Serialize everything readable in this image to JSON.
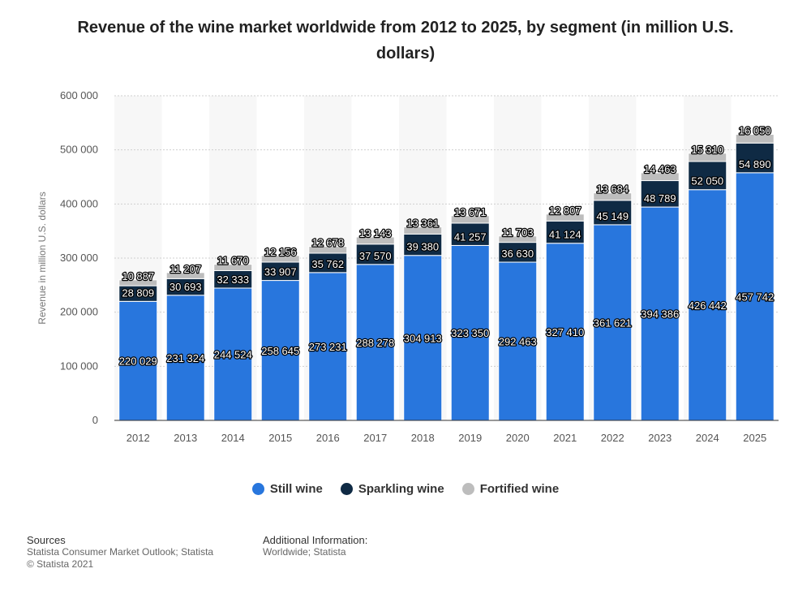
{
  "chart_data": {
    "type": "bar",
    "stacked": true,
    "title": "Revenue of the wine market worldwide from 2012 to 2025, by segment (in million U.S. dollars)",
    "xlabel": "",
    "ylabel": "Revenue in million U.S. dollars",
    "ylim": [
      0,
      600000
    ],
    "yticks": [
      0,
      100000,
      200000,
      300000,
      400000,
      500000,
      600000
    ],
    "ytick_labels": [
      "0",
      "100 000",
      "200 000",
      "300 000",
      "400 000",
      "500 000",
      "600 000"
    ],
    "categories": [
      "2012",
      "2013",
      "2014",
      "2015",
      "2016",
      "2017",
      "2018",
      "2019",
      "2020",
      "2021",
      "2022",
      "2023",
      "2024",
      "2025"
    ],
    "series": [
      {
        "name": "Still wine",
        "color": "#2876dd",
        "values": [
          220029,
          231324,
          244524,
          258645,
          273231,
          288278,
          304913,
          323350,
          292463,
          327410,
          361621,
          394386,
          426442,
          457742
        ],
        "labels": [
          "220 029",
          "231 324",
          "244 524",
          "258 645",
          "273 231",
          "288 278",
          "304 913",
          "323 350",
          "292 463",
          "327 410",
          "361 621",
          "394 386",
          "426 442",
          "457 742"
        ]
      },
      {
        "name": "Sparkling wine",
        "color": "#0f2a44",
        "values": [
          28809,
          30693,
          32333,
          33907,
          35762,
          37570,
          39380,
          41257,
          36630,
          41124,
          45149,
          48789,
          52050,
          54890
        ],
        "labels": [
          "28 809",
          "30 693",
          "32 333",
          "33 907",
          "35 762",
          "37 570",
          "39 380",
          "41 257",
          "36 630",
          "41 124",
          "45 149",
          "48 789",
          "52 050",
          "54 890"
        ]
      },
      {
        "name": "Fortified wine",
        "color": "#bdbdbd",
        "values": [
          10887,
          11207,
          11670,
          12156,
          12678,
          13143,
          13361,
          13671,
          11703,
          12807,
          13684,
          14463,
          15310,
          16050
        ],
        "labels": [
          "10 887",
          "11 207",
          "11 670",
          "12 156",
          "12 678",
          "13 143",
          "13 361",
          "13 671",
          "11 703",
          "12 807",
          "13 684",
          "14 463",
          "15 310",
          "16 050"
        ]
      }
    ]
  },
  "legend": [
    {
      "label": "Still wine",
      "color": "#2876dd"
    },
    {
      "label": "Sparkling wine",
      "color": "#0f2a44"
    },
    {
      "label": "Fortified wine",
      "color": "#bdbdbd"
    }
  ],
  "footer": {
    "sources_title": "Sources",
    "sources_line1": "Statista Consumer Market Outlook; Statista",
    "sources_line2": "© Statista 2021",
    "info_title": "Additional Information:",
    "info_line1": "Worldwide; Statista"
  }
}
